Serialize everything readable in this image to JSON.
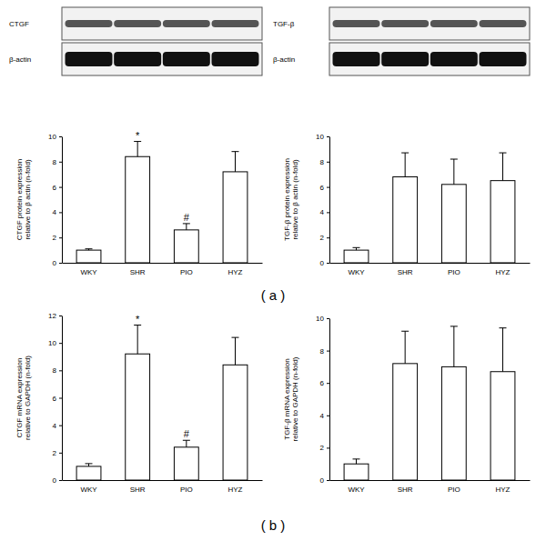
{
  "chart_data": [
    {
      "type": "bar",
      "panel_label": "( a )",
      "blot_labels": [
        "CTGF",
        "β-actin"
      ],
      "y_label": [
        "CTGF protein expression",
        "relative to β actin (n-fold)"
      ],
      "categories": [
        "WKY",
        "SHR",
        "PIO",
        "HYZ"
      ],
      "values": [
        1.0,
        8.4,
        2.6,
        7.2
      ],
      "errors": [
        0.1,
        1.2,
        0.5,
        1.6
      ],
      "annotations": [
        {
          "text": "*",
          "x": "SHR"
        },
        {
          "text": "#",
          "x": "PIO"
        }
      ],
      "color": "#ffffff",
      "ylim": [
        0,
        10
      ],
      "yticks": [
        0,
        2,
        4,
        6,
        8,
        10
      ],
      "grid": false
    },
    {
      "type": "bar",
      "blot_labels": [
        "TGF-β",
        "β-actin"
      ],
      "y_label": [
        "TGF-β protein expression",
        "relative to β actin (n-fold)"
      ],
      "categories": [
        "WKY",
        "SHR",
        "PIO",
        "HYZ"
      ],
      "values": [
        1.0,
        6.8,
        6.2,
        6.5
      ],
      "errors": [
        0.2,
        1.9,
        2.0,
        2.2
      ],
      "color": "#ffffff",
      "ylim": [
        0,
        10
      ],
      "yticks": [
        0,
        2,
        4,
        6,
        8,
        10
      ],
      "grid": false
    },
    {
      "type": "bar",
      "panel_label": "( b )",
      "y_label": [
        "CTGF mRNA expression",
        "relative to GAPDH (n-fold)"
      ],
      "categories": [
        "WKY",
        "SHR",
        "PIO",
        "HYZ"
      ],
      "values": [
        1.0,
        9.2,
        2.4,
        8.4
      ],
      "errors": [
        0.2,
        2.1,
        0.5,
        2.0
      ],
      "annotations": [
        {
          "text": "*",
          "x": "SHR"
        },
        {
          "text": "#",
          "x": "PIO"
        }
      ],
      "color": "#ffffff",
      "ylim": [
        0,
        12
      ],
      "yticks": [
        0,
        2,
        4,
        6,
        8,
        10,
        12
      ],
      "grid": false
    },
    {
      "type": "bar",
      "y_label": [
        "TGF-β mRNA expression",
        "relative to GAPDH (n-fold)"
      ],
      "categories": [
        "WKY",
        "SHR",
        "PIO",
        "HYZ"
      ],
      "values": [
        1.0,
        7.2,
        7.0,
        6.7
      ],
      "errors": [
        0.3,
        2.0,
        2.5,
        2.7
      ],
      "color": "#ffffff",
      "ylim": [
        0,
        10
      ],
      "yticks": [
        0,
        2,
        4,
        6,
        8,
        10
      ],
      "grid": false
    }
  ]
}
